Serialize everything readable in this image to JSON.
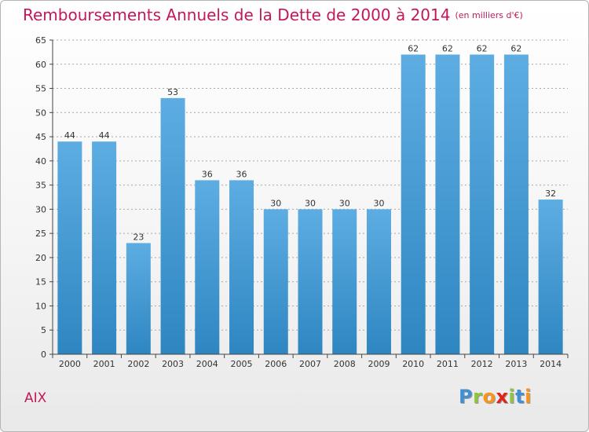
{
  "header": {
    "title": "Remboursements Annuels de la Dette de 2000 à 2014",
    "unit": "(en milliers d'€)"
  },
  "footer": {
    "town": "AIX",
    "logo_text": "Proxiti"
  },
  "colors": {
    "title": "#c2185b",
    "bar_top": "#5dade2",
    "bar_bottom": "#2e86c1",
    "axis": "#444444"
  },
  "chart_data": {
    "type": "bar",
    "categories": [
      "2000",
      "2001",
      "2002",
      "2003",
      "2004",
      "2005",
      "2006",
      "2007",
      "2008",
      "2009",
      "2010",
      "2011",
      "2012",
      "2013",
      "2014"
    ],
    "values": [
      44,
      44,
      23,
      53,
      36,
      36,
      30,
      30,
      30,
      30,
      62,
      62,
      62,
      62,
      32
    ],
    "title": "Remboursements Annuels de la Dette de 2000 à 2014",
    "unit": "(en milliers d'€)",
    "xlabel": "",
    "ylabel": "",
    "ylim": [
      0,
      65
    ],
    "yticks": [
      0,
      5,
      10,
      15,
      20,
      25,
      30,
      35,
      40,
      45,
      50,
      55,
      60,
      65
    ],
    "grid": true,
    "data_labels": true,
    "legend": "none"
  }
}
